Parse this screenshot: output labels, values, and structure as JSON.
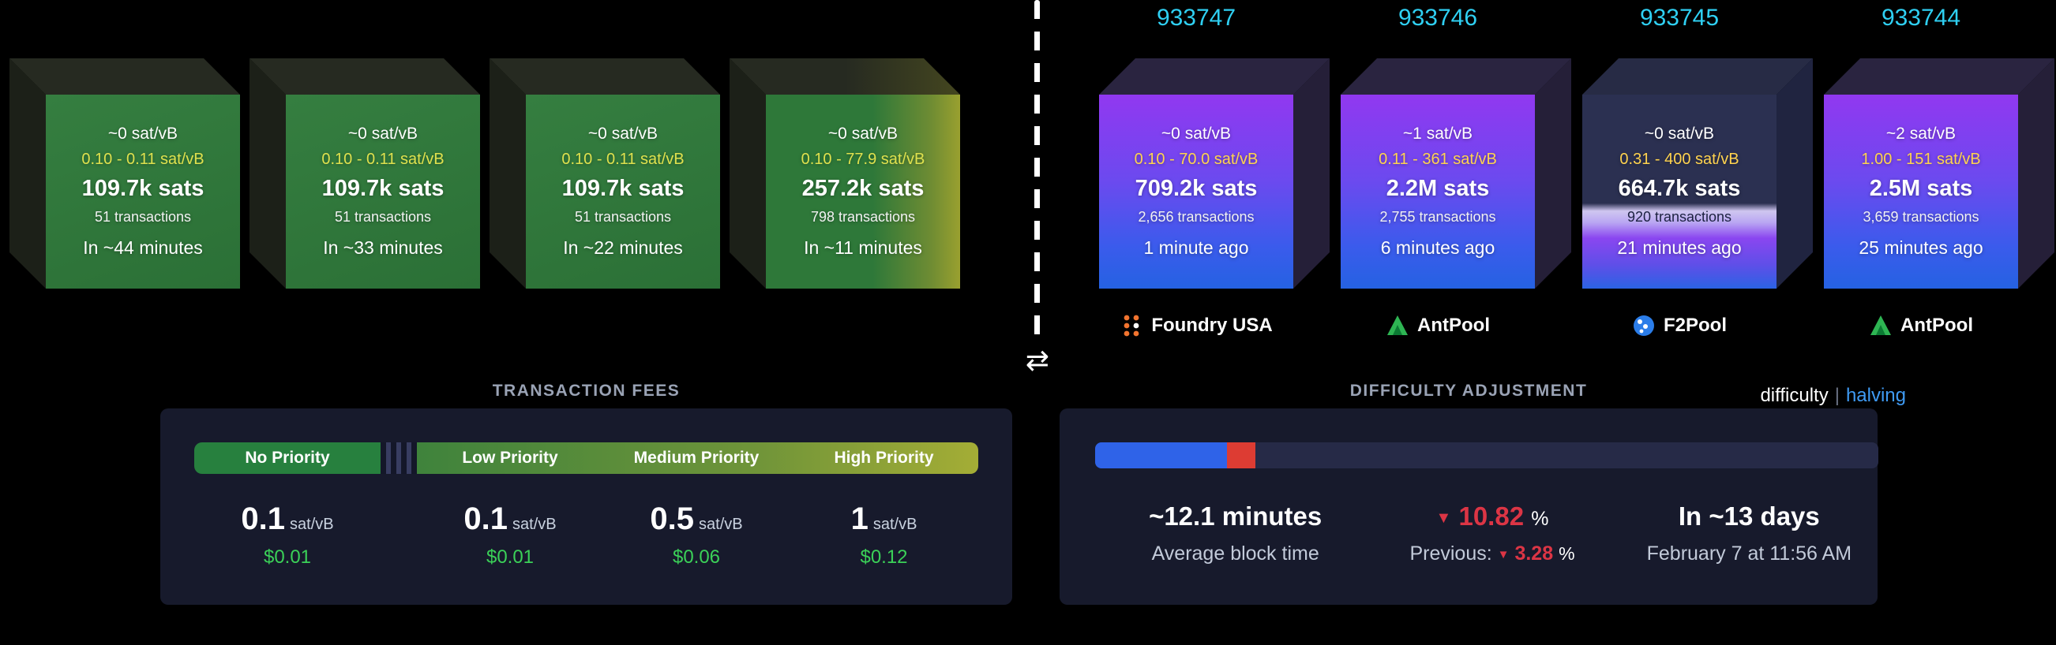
{
  "colors": {
    "height_link": "#2fd0f3",
    "halving_link": "#3f9bf4",
    "usd_green": "#3bd158",
    "negative_red": "#dc3545",
    "mempool_block_green": "#2e7839",
    "mined_block_purple": "#9138f0",
    "mined_block_blue": "#2562e2"
  },
  "mempool_blocks": [
    {
      "median_fee": "~0 sat/vB",
      "fee_range": "0.10 - 0.11 sat/vB",
      "total_fees": "109.7k sats",
      "tx_count": "51 transactions",
      "eta": "In ~44 minutes"
    },
    {
      "median_fee": "~0 sat/vB",
      "fee_range": "0.10 - 0.11 sat/vB",
      "total_fees": "109.7k sats",
      "tx_count": "51 transactions",
      "eta": "In ~33 minutes"
    },
    {
      "median_fee": "~0 sat/vB",
      "fee_range": "0.10 - 0.11 sat/vB",
      "total_fees": "109.7k sats",
      "tx_count": "51 transactions",
      "eta": "In ~22 minutes"
    },
    {
      "median_fee": "~0 sat/vB",
      "fee_range": "0.10 - 77.9 sat/vB",
      "total_fees": "257.2k sats",
      "tx_count": "798 transactions",
      "eta": "In ~11 minutes"
    }
  ],
  "mined_blocks": [
    {
      "height": "933747",
      "median_fee": "~0 sat/vB",
      "fee_range": "0.10 - 70.0 sat/vB",
      "total_fees": "709.2k sats",
      "tx_count": "2,656 transactions",
      "time_ago": "1 minute ago",
      "pool": "Foundry USA"
    },
    {
      "height": "933746",
      "median_fee": "~1 sat/vB",
      "fee_range": "0.11 - 361 sat/vB",
      "total_fees": "2.2M sats",
      "tx_count": "2,755 transactions",
      "time_ago": "6 minutes ago",
      "pool": "AntPool"
    },
    {
      "height": "933745",
      "median_fee": "~0 sat/vB",
      "fee_range": "0.31 - 400 sat/vB",
      "total_fees": "664.7k sats",
      "tx_count": "920 transactions",
      "time_ago": "21 minutes ago",
      "pool": "F2Pool"
    },
    {
      "height": "933744",
      "median_fee": "~2 sat/vB",
      "fee_range": "1.00 - 151 sat/vB",
      "total_fees": "2.5M sats",
      "tx_count": "3,659 transactions",
      "time_ago": "25 minutes ago",
      "pool": "AntPool"
    }
  ],
  "fees_panel": {
    "title": "TRANSACTION FEES",
    "tiers": [
      {
        "label": "No Priority",
        "rate": "0.1",
        "unit": "sat/vB",
        "usd": "$0.01"
      },
      {
        "label": "Low Priority",
        "rate": "0.1",
        "unit": "sat/vB",
        "usd": "$0.01"
      },
      {
        "label": "Medium Priority",
        "rate": "0.5",
        "unit": "sat/vB",
        "usd": "$0.06"
      },
      {
        "label": "High Priority",
        "rate": "1",
        "unit": "sat/vB",
        "usd": "$0.12"
      }
    ]
  },
  "difficulty_panel": {
    "title": "DIFFICULTY ADJUSTMENT",
    "toggle": {
      "difficulty": "difficulty",
      "separator": "|",
      "halving": "halving"
    },
    "progress_percent": 16.8,
    "estimate_percent": 3.7,
    "avg_block_time": "~12.1 minutes",
    "avg_block_time_label": "Average block time",
    "change_arrow": "▼",
    "change_value": "10.82",
    "change_unit": "%",
    "previous_label": "Previous:",
    "previous_arrow": "▼",
    "previous_value": "3.28",
    "previous_unit": "%",
    "retarget_eta": "In ~13 days",
    "retarget_date": "February 7 at 11:56 AM"
  }
}
